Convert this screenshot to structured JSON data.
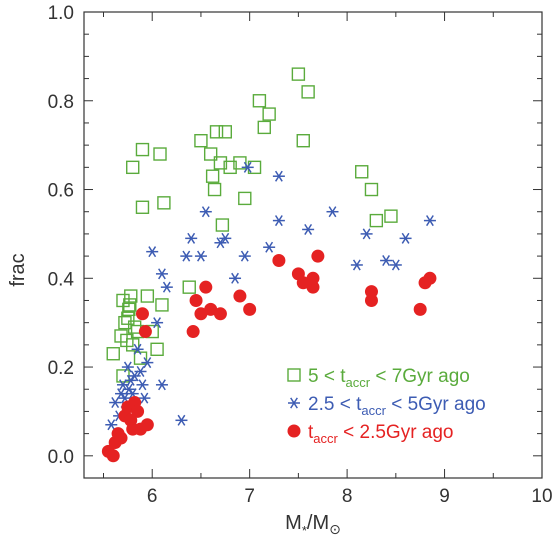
{
  "chart_data": {
    "type": "scatter",
    "xlabel": "M*/M⊙",
    "ylabel": "frac",
    "xlim": [
      5.3,
      10
    ],
    "ylim": [
      -0.05,
      1.0
    ],
    "xticks": [
      "6",
      "7",
      "8",
      "9",
      "10"
    ],
    "yticks": [
      "0.0",
      "0.2",
      "0.4",
      "0.6",
      "0.8",
      "1.0"
    ],
    "grid": false,
    "legend": "bottom-right",
    "series": [
      {
        "name": "5 < taccr < 7Gyr ago",
        "legend_parts": {
          "pre": "5 < t",
          "sub": "accr",
          "post": " < 7Gyr ago"
        },
        "marker": "square",
        "color": "#5aab3c",
        "points": [
          [
            5.6,
            0.23
          ],
          [
            5.68,
            0.27
          ],
          [
            5.7,
            0.35
          ],
          [
            5.72,
            0.3
          ],
          [
            5.74,
            0.26
          ],
          [
            5.76,
            0.33
          ],
          [
            5.78,
            0.36
          ],
          [
            5.8,
            0.25
          ],
          [
            5.82,
            0.29
          ],
          [
            5.75,
            0.31
          ],
          [
            5.85,
            0.28
          ],
          [
            5.88,
            0.22
          ],
          [
            5.7,
            0.18
          ],
          [
            5.77,
            0.34
          ],
          [
            5.95,
            0.36
          ],
          [
            6.0,
            0.28
          ],
          [
            6.05,
            0.24
          ],
          [
            6.1,
            0.34
          ],
          [
            5.8,
            0.65
          ],
          [
            5.9,
            0.69
          ],
          [
            6.08,
            0.68
          ],
          [
            6.12,
            0.57
          ],
          [
            5.9,
            0.56
          ],
          [
            6.38,
            0.38
          ],
          [
            6.5,
            0.71
          ],
          [
            6.6,
            0.68
          ],
          [
            6.62,
            0.63
          ],
          [
            6.64,
            0.6
          ],
          [
            6.66,
            0.73
          ],
          [
            6.7,
            0.66
          ],
          [
            6.72,
            0.52
          ],
          [
            6.75,
            0.73
          ],
          [
            6.8,
            0.65
          ],
          [
            6.9,
            0.66
          ],
          [
            6.95,
            0.58
          ],
          [
            7.05,
            0.65
          ],
          [
            7.1,
            0.8
          ],
          [
            7.15,
            0.74
          ],
          [
            7.2,
            0.77
          ],
          [
            7.5,
            0.86
          ],
          [
            7.55,
            0.71
          ],
          [
            7.6,
            0.82
          ],
          [
            8.15,
            0.64
          ],
          [
            8.25,
            0.6
          ],
          [
            8.3,
            0.53
          ],
          [
            8.45,
            0.54
          ]
        ]
      },
      {
        "name": "2.5 < taccr < 5Gyr ago",
        "legend_parts": {
          "pre": "2.5 < t",
          "sub": "accr",
          "post": " < 5Gyr ago"
        },
        "marker": "asterisk",
        "color": "#3d5cb3",
        "points": [
          [
            5.58,
            0.07
          ],
          [
            5.62,
            0.12
          ],
          [
            5.66,
            0.09
          ],
          [
            5.68,
            0.14
          ],
          [
            5.7,
            0.16
          ],
          [
            5.72,
            0.13
          ],
          [
            5.74,
            0.11
          ],
          [
            5.76,
            0.15
          ],
          [
            5.78,
            0.17
          ],
          [
            5.8,
            0.14
          ],
          [
            5.82,
            0.18
          ],
          [
            5.75,
            0.2
          ],
          [
            5.85,
            0.24
          ],
          [
            5.88,
            0.19
          ],
          [
            5.9,
            0.16
          ],
          [
            5.92,
            0.13
          ],
          [
            5.95,
            0.21
          ],
          [
            6.0,
            0.46
          ],
          [
            6.05,
            0.3
          ],
          [
            6.1,
            0.16
          ],
          [
            6.1,
            0.41
          ],
          [
            6.15,
            0.38
          ],
          [
            6.3,
            0.08
          ],
          [
            6.35,
            0.45
          ],
          [
            6.4,
            0.49
          ],
          [
            6.5,
            0.45
          ],
          [
            6.55,
            0.55
          ],
          [
            6.7,
            0.48
          ],
          [
            6.75,
            0.49
          ],
          [
            6.85,
            0.4
          ],
          [
            6.95,
            0.45
          ],
          [
            6.98,
            0.65
          ],
          [
            7.2,
            0.47
          ],
          [
            7.3,
            0.53
          ],
          [
            7.3,
            0.63
          ],
          [
            7.6,
            0.51
          ],
          [
            7.85,
            0.55
          ],
          [
            8.1,
            0.43
          ],
          [
            8.2,
            0.5
          ],
          [
            8.4,
            0.44
          ],
          [
            8.5,
            0.43
          ],
          [
            8.6,
            0.49
          ],
          [
            8.85,
            0.53
          ]
        ]
      },
      {
        "name": "taccr < 2.5Gyr ago",
        "legend_parts": {
          "pre": "t",
          "sub": "accr",
          "post": " < 2.5Gyr ago"
        },
        "marker": "circle",
        "color": "#e52222",
        "points": [
          [
            5.55,
            0.01
          ],
          [
            5.6,
            0.0
          ],
          [
            5.62,
            0.03
          ],
          [
            5.65,
            0.05
          ],
          [
            5.68,
            0.04
          ],
          [
            5.72,
            0.09
          ],
          [
            5.75,
            0.11
          ],
          [
            5.78,
            0.08
          ],
          [
            5.8,
            0.06
          ],
          [
            5.82,
            0.12
          ],
          [
            5.85,
            0.1
          ],
          [
            5.88,
            0.06
          ],
          [
            5.9,
            0.32
          ],
          [
            5.93,
            0.28
          ],
          [
            5.95,
            0.07
          ],
          [
            6.42,
            0.28
          ],
          [
            6.45,
            0.35
          ],
          [
            6.5,
            0.32
          ],
          [
            6.55,
            0.38
          ],
          [
            6.6,
            0.33
          ],
          [
            6.7,
            0.32
          ],
          [
            6.9,
            0.36
          ],
          [
            7.0,
            0.33
          ],
          [
            7.3,
            0.44
          ],
          [
            7.5,
            0.41
          ],
          [
            7.55,
            0.39
          ],
          [
            7.65,
            0.38
          ],
          [
            7.65,
            0.4
          ],
          [
            7.7,
            0.45
          ],
          [
            8.25,
            0.35
          ],
          [
            8.25,
            0.37
          ],
          [
            8.75,
            0.33
          ],
          [
            8.8,
            0.39
          ],
          [
            8.85,
            0.4
          ]
        ]
      }
    ]
  }
}
